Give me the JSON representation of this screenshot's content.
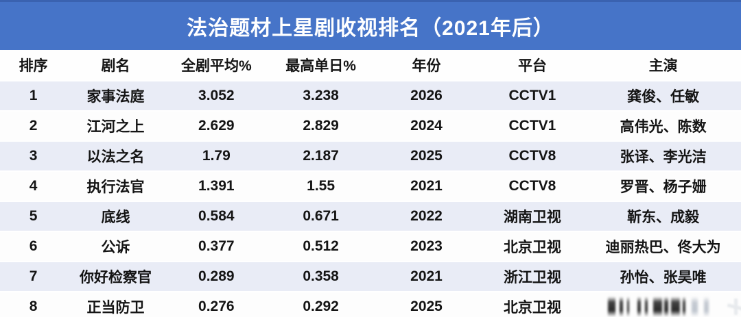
{
  "title": "法治题材上星剧收视排名（2021年后）",
  "chart_data": {
    "type": "table",
    "title": "法治题材上星剧收视排名（2021年后）",
    "columns": [
      "排序",
      "剧名",
      "全剧平均%",
      "最高单日%",
      "年份",
      "平台",
      "主演"
    ],
    "rows": [
      {
        "rank": "1",
        "name": "家事法庭",
        "avg_pct": "3.052",
        "max_daily_pct": "3.238",
        "year": "2026",
        "platform": "CCTV1",
        "cast": "龚俊、任敏"
      },
      {
        "rank": "2",
        "name": "江河之上",
        "avg_pct": "2.629",
        "max_daily_pct": "2.829",
        "year": "2024",
        "platform": "CCTV1",
        "cast": "高伟光、陈数"
      },
      {
        "rank": "3",
        "name": "以法之名",
        "avg_pct": "1.79",
        "max_daily_pct": "2.187",
        "year": "2025",
        "platform": "CCTV8",
        "cast": "张译、李光洁"
      },
      {
        "rank": "4",
        "name": "执行法官",
        "avg_pct": "1.391",
        "max_daily_pct": "1.55",
        "year": "2021",
        "platform": "CCTV8",
        "cast": "罗晋、杨子姗"
      },
      {
        "rank": "5",
        "name": "底线",
        "avg_pct": "0.584",
        "max_daily_pct": "0.671",
        "year": "2022",
        "platform": "湖南卫视",
        "cast": "靳东、成毅"
      },
      {
        "rank": "6",
        "name": "公诉",
        "avg_pct": "0.377",
        "max_daily_pct": "0.512",
        "year": "2023",
        "platform": "北京卫视",
        "cast": "迪丽热巴、佟大为"
      },
      {
        "rank": "7",
        "name": "你好检察官",
        "avg_pct": "0.289",
        "max_daily_pct": "0.358",
        "year": "2021",
        "platform": "浙江卫视",
        "cast": "孙怡、张昊唯"
      },
      {
        "rank": "8",
        "name": "正当防卫",
        "avg_pct": "0.276",
        "max_daily_pct": "0.292",
        "year": "2025",
        "platform": "北京卫视",
        "cast": "",
        "cast_smudged": true
      }
    ]
  },
  "colors": {
    "header_blue": "#4674c8",
    "header_blue_edge": "#3a62b0",
    "row_alt": "#e9ecf6",
    "bottom_bar": "#3c6186",
    "text": "#141414",
    "title_text": "#ffffff"
  }
}
